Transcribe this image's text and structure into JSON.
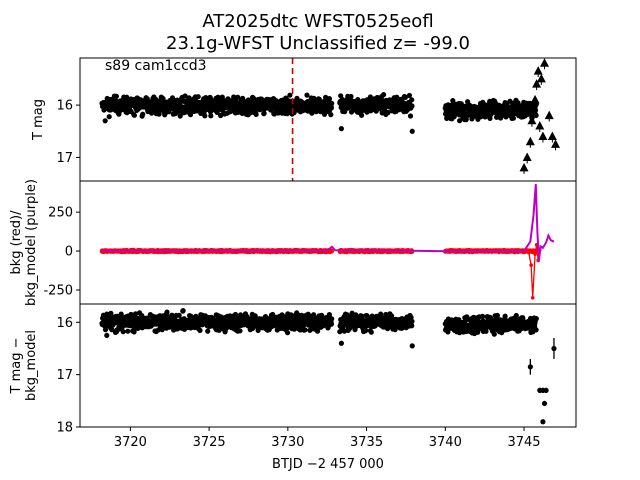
{
  "title": {
    "line1": "AT2025dtc  WFST0525eofl",
    "line2": "23.1g-WFST Unclassified z= -99.0"
  },
  "colors": {
    "data": "#000000",
    "bkg": "#ff0000",
    "bkg_model": "#c000c0",
    "marker": "#d00000"
  },
  "chart_data": [
    {
      "type": "scatter",
      "panel": "top",
      "ylabel": "T mag",
      "annotation": "s89 cam1ccd3",
      "ylim": [
        17.45,
        15.1
      ],
      "yticks": [
        16,
        17
      ],
      "vline": {
        "x": 3730.3,
        "style": "dashed",
        "color": "#d00000"
      },
      "segments": [
        {
          "x_start": 3718.2,
          "x_end": 3732.8,
          "y_center": 16.02,
          "y_spread": 0.24
        },
        {
          "x_start": 3733.3,
          "x_end": 3737.9,
          "y_center": 16.0,
          "y_spread": 0.22
        },
        {
          "x_start": 3740.0,
          "x_end": 3745.8,
          "y_center": 16.1,
          "y_spread": 0.24
        }
      ],
      "outliers": [
        {
          "x": 3733.4,
          "y": 16.45
        },
        {
          "x": 3737.9,
          "y": 16.5
        },
        {
          "x": 3718.4,
          "y": 16.3
        }
      ],
      "triangles": [
        {
          "x": 3745.0,
          "y": 17.2
        },
        {
          "x": 3745.2,
          "y": 17.0
        },
        {
          "x": 3745.4,
          "y": 16.7
        },
        {
          "x": 3745.5,
          "y": 16.3
        },
        {
          "x": 3745.6,
          "y": 16.1
        },
        {
          "x": 3745.7,
          "y": 15.9
        },
        {
          "x": 3745.8,
          "y": 15.6
        },
        {
          "x": 3745.9,
          "y": 15.35
        },
        {
          "x": 3746.0,
          "y": 16.4
        },
        {
          "x": 3746.1,
          "y": 15.5
        },
        {
          "x": 3746.2,
          "y": 16.6
        },
        {
          "x": 3746.3,
          "y": 15.2
        },
        {
          "x": 3746.6,
          "y": 16.2
        },
        {
          "x": 3746.8,
          "y": 16.6
        },
        {
          "x": 3747.0,
          "y": 16.75
        }
      ]
    },
    {
      "type": "line",
      "panel": "middle",
      "ylabel": "bkg (red)/\nbkg_model (purple)",
      "ylim": [
        -340,
        450
      ],
      "yticks": [
        -250,
        0,
        250
      ],
      "bkg_segments": [
        {
          "x_start": 3718.2,
          "x_end": 3732.8
        },
        {
          "x_start": 3733.3,
          "x_end": 3737.9
        },
        {
          "x_start": 3740.0,
          "x_end": 3745.8
        }
      ],
      "bkg_model": [
        [
          3718.2,
          3
        ],
        [
          3732.5,
          3
        ],
        [
          3732.8,
          28
        ],
        [
          3733.0,
          5
        ],
        [
          3737.9,
          2
        ],
        [
          3739.5,
          0
        ],
        [
          3745.0,
          0
        ],
        [
          3745.4,
          60
        ],
        [
          3745.6,
          230
        ],
        [
          3745.75,
          430
        ],
        [
          3745.85,
          120
        ],
        [
          3745.95,
          -60
        ],
        [
          3746.05,
          30
        ],
        [
          3746.2,
          20
        ],
        [
          3746.4,
          55
        ],
        [
          3746.55,
          100
        ],
        [
          3746.7,
          70
        ],
        [
          3746.9,
          60
        ]
      ],
      "bkg_spikes": [
        [
          3745.3,
          -10
        ],
        [
          3745.45,
          -90
        ],
        [
          3745.55,
          -300
        ],
        [
          3745.7,
          -20
        ],
        [
          3745.8,
          40
        ],
        [
          3745.9,
          -60
        ],
        [
          3746.0,
          10
        ]
      ]
    },
    {
      "type": "scatter",
      "panel": "bottom",
      "ylabel": "T mag −\nbkg_model",
      "ylim": [
        18.0,
        15.65
      ],
      "yticks": [
        16,
        17,
        18
      ],
      "segments": [
        {
          "x_start": 3718.2,
          "x_end": 3732.8,
          "y_center": 16.0,
          "y_spread": 0.23
        },
        {
          "x_start": 3733.3,
          "x_end": 3737.9,
          "y_center": 16.0,
          "y_spread": 0.22
        },
        {
          "x_start": 3740.0,
          "x_end": 3745.8,
          "y_center": 16.05,
          "y_spread": 0.22
        }
      ],
      "outliers": [
        {
          "x": 3718.5,
          "y": 16.25
        },
        {
          "x": 3737.9,
          "y": 16.45
        },
        {
          "x": 3733.4,
          "y": 16.4
        }
      ],
      "errorbars": [
        {
          "x": 3745.4,
          "y": 16.85,
          "err": 0.15
        },
        {
          "x": 3746.0,
          "y": 17.3,
          "err": 0.05
        },
        {
          "x": 3746.2,
          "y": 17.3,
          "err": 0.05
        },
        {
          "x": 3746.3,
          "y": 17.55,
          "err": 0.05
        },
        {
          "x": 3746.4,
          "y": 17.3,
          "err": 0.05
        },
        {
          "x": 3746.2,
          "y": 17.9,
          "err": 0.03
        },
        {
          "x": 3746.9,
          "y": 16.5,
          "err": 0.2
        }
      ],
      "xlabel": "BTJD −2 457 000",
      "xlim": [
        3716.8,
        3748.3
      ],
      "xticks": [
        3720,
        3725,
        3730,
        3735,
        3740,
        3745
      ]
    }
  ]
}
